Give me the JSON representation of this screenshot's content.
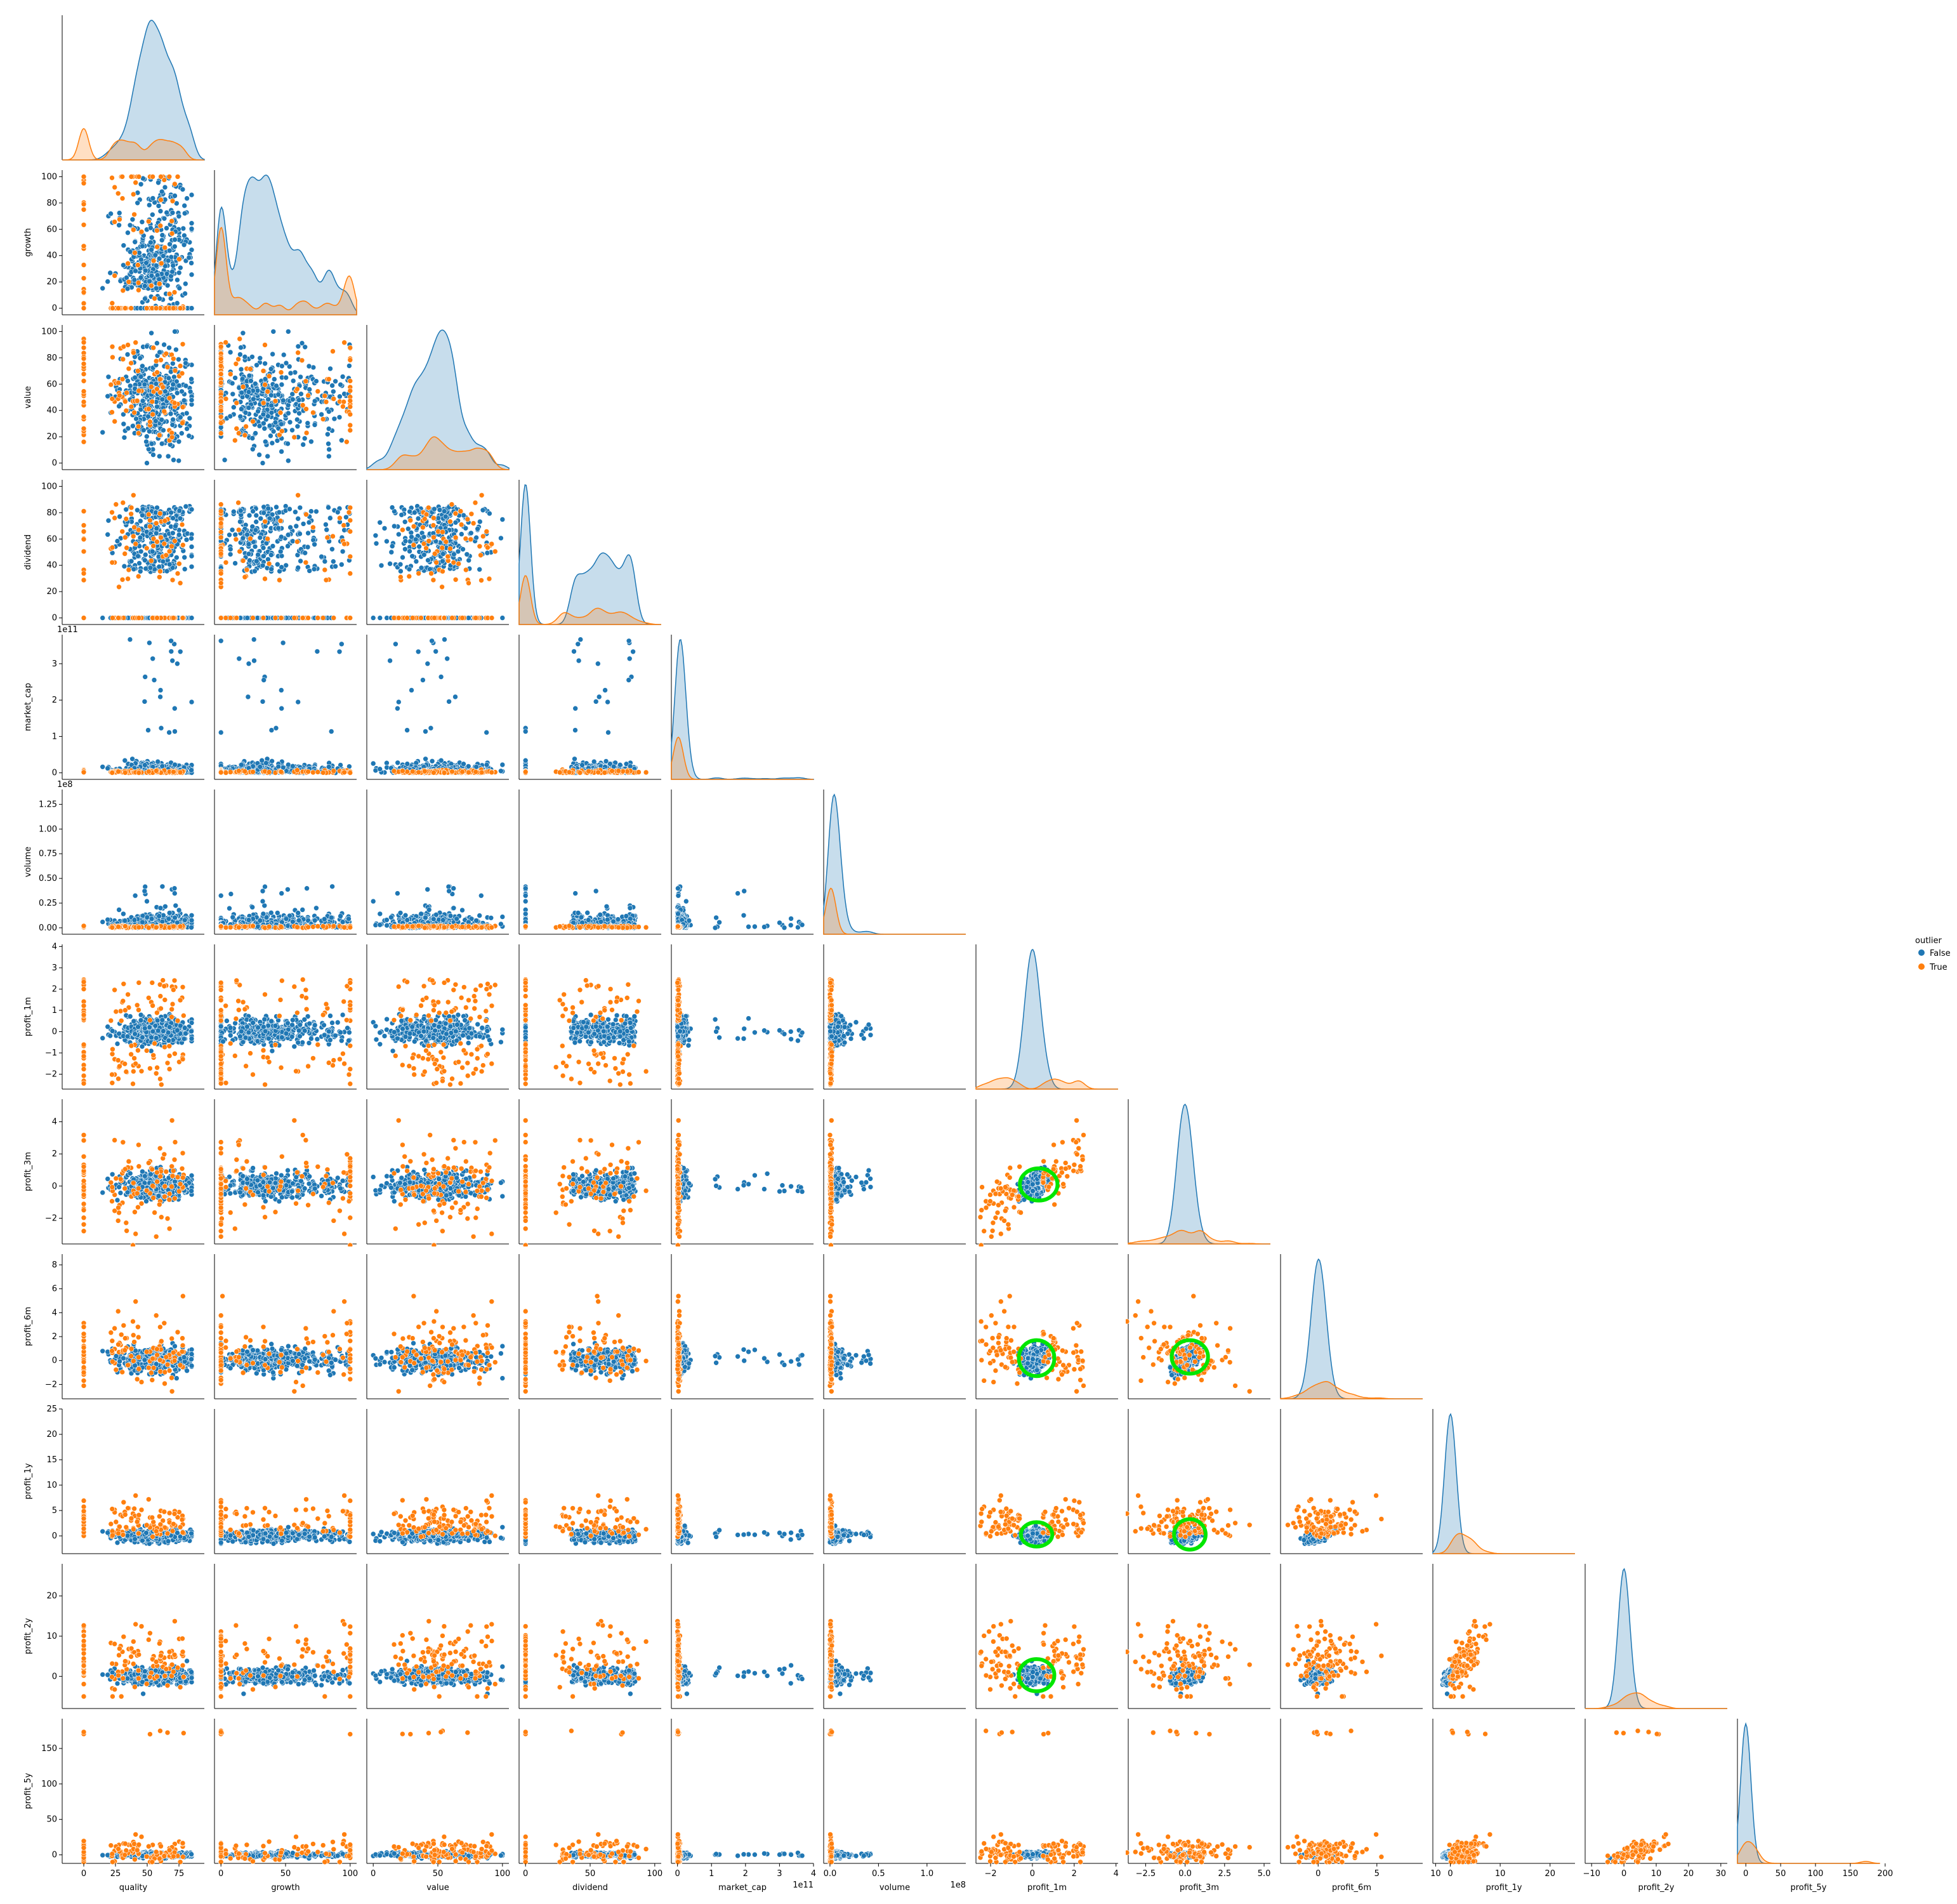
{
  "chart_data": {
    "type": "scatter",
    "kind": "pairplot-corner",
    "variables": [
      "quality",
      "growth",
      "value",
      "dividend",
      "market_cap",
      "volume",
      "profit_1m",
      "profit_3m",
      "profit_6m",
      "profit_1y",
      "profit_2y",
      "profit_5y"
    ],
    "axes": {
      "quality": {
        "range": [
          -17,
          95
        ],
        "ticks": [
          0,
          25,
          50,
          75
        ],
        "tick_labels": [
          "0",
          "25",
          "50",
          "75"
        ]
      },
      "growth": {
        "range": [
          -5,
          105
        ],
        "ticks": [
          0,
          20,
          40,
          60,
          80,
          100
        ],
        "tick_labels": [
          "0",
          "20",
          "40",
          "60",
          "80",
          "100"
        ],
        "x_ticks": [
          0,
          50,
          100
        ],
        "x_tick_labels": [
          "0",
          "50",
          "100"
        ]
      },
      "value": {
        "range": [
          -5,
          105
        ],
        "ticks": [
          0,
          20,
          40,
          60,
          80,
          100
        ],
        "tick_labels": [
          "0",
          "20",
          "40",
          "60",
          "80",
          "100"
        ],
        "x_ticks": [
          0,
          50,
          100
        ],
        "x_tick_labels": [
          "0",
          "50",
          "100"
        ]
      },
      "dividend": {
        "range": [
          -5,
          105
        ],
        "ticks": [
          0,
          20,
          40,
          60,
          80,
          100
        ],
        "tick_labels": [
          "0",
          "20",
          "40",
          "60",
          "80",
          "100"
        ],
        "x_ticks": [
          0,
          50,
          100
        ],
        "x_tick_labels": [
          "0",
          "50",
          "100"
        ]
      },
      "market_cap": {
        "range": [
          -18000000000.0,
          380000000000.0
        ],
        "ticks": [
          0,
          100000000000.0,
          200000000000.0,
          300000000000.0
        ],
        "tick_labels": [
          "0",
          "1",
          "2",
          "3"
        ],
        "x_range": [
          -18000000000.0,
          400000000000.0
        ],
        "x_ticks": [
          0,
          100000000000.0,
          200000000000.0,
          300000000000.0,
          400000000000.0
        ],
        "x_tick_labels": [
          "0",
          "1",
          "2",
          "3",
          "4"
        ],
        "offset": "1e11"
      },
      "volume": {
        "range": [
          -6500000.0,
          140000000.0
        ],
        "ticks": [
          0,
          25000000.0,
          50000000.0,
          75000000.0,
          100000000.0,
          125000000.0
        ],
        "tick_labels": [
          "0.00",
          "0.25",
          "0.50",
          "0.75",
          "1.00",
          "1.25"
        ],
        "x_ticks": [
          0,
          50000000.0,
          100000000.0
        ],
        "x_tick_labels": [
          "0.0",
          "0.5",
          "1.0"
        ],
        "offset": "1e8"
      },
      "profit_1m": {
        "range": [
          -2.7,
          4.1
        ],
        "ticks": [
          -2,
          -1,
          0,
          1,
          2,
          3,
          4
        ],
        "tick_labels": [
          "−2",
          "−1",
          "0",
          "1",
          "2",
          "3",
          "4"
        ],
        "x_ticks": [
          -2,
          0,
          2,
          4
        ],
        "x_tick_labels": [
          "−2",
          "0",
          "2",
          "4"
        ]
      },
      "profit_3m": {
        "range": [
          -3.6,
          5.4
        ],
        "ticks": [
          -2,
          0,
          2,
          4
        ],
        "tick_labels": [
          "−2",
          "0",
          "2",
          "4"
        ],
        "x_ticks": [
          -2.5,
          0,
          2.5,
          5
        ],
        "x_tick_labels": [
          "−2.5",
          "0.0",
          "2.5",
          "5.0"
        ]
      },
      "profit_6m": {
        "range": [
          -3.2,
          8.9
        ],
        "ticks": [
          -2,
          0,
          2,
          4,
          6,
          8
        ],
        "tick_labels": [
          "−2",
          "0",
          "2",
          "4",
          "6",
          "8"
        ],
        "x_ticks": [
          0,
          5,
          10
        ],
        "x_tick_labels": [
          "0",
          "5",
          "10"
        ]
      },
      "profit_1y": {
        "range": [
          -3.5,
          25
        ],
        "ticks": [
          0,
          5,
          10,
          15,
          20,
          25
        ],
        "tick_labels": [
          "0",
          "5",
          "10",
          "15",
          "20",
          "25"
        ],
        "x_ticks": [
          0,
          10,
          20
        ],
        "x_tick_labels": [
          "0",
          "10",
          "20"
        ]
      },
      "profit_2y": {
        "range": [
          -8,
          28
        ],
        "ticks": [
          0,
          10,
          20
        ],
        "tick_labels": [
          "0",
          "10",
          "20"
        ],
        "x_range": [
          -12,
          32
        ],
        "x_ticks": [
          -10,
          0,
          10,
          20,
          30
        ],
        "x_tick_labels": [
          "−10",
          "0",
          "10",
          "20",
          "30"
        ]
      },
      "profit_5y": {
        "range": [
          -12,
          192
        ],
        "ticks": [
          0,
          50,
          100,
          150
        ],
        "tick_labels": [
          "0",
          "50",
          "100",
          "150"
        ],
        "x_ticks": [
          0,
          50,
          100,
          150,
          200
        ],
        "x_tick_labels": [
          "0",
          "50",
          "100",
          "150",
          "200"
        ]
      }
    },
    "series": [
      {
        "name": "False",
        "color": "#1f77b4"
      },
      {
        "name": "True",
        "color": "#ff7f0e"
      }
    ],
    "legend": {
      "title": "outlier",
      "entries": [
        "False",
        "True"
      ],
      "placement": "right"
    },
    "annotations": [
      {
        "type": "ellipse",
        "x": "profit_1m",
        "y": "profit_3m",
        "center": [
          0.3,
          0.1
        ],
        "radius": [
          0.9,
          1.0
        ],
        "color": "#00e600"
      },
      {
        "type": "ellipse",
        "x": "profit_1m",
        "y": "profit_6m",
        "center": [
          0.2,
          0.2
        ],
        "radius": [
          0.85,
          1.5
        ],
        "color": "#00e600"
      },
      {
        "type": "ellipse",
        "x": "profit_3m",
        "y": "profit_6m",
        "center": [
          0.3,
          0.3
        ],
        "radius": [
          1.15,
          1.4
        ],
        "color": "#00e600"
      },
      {
        "type": "ellipse",
        "x": "profit_1m",
        "y": "profit_1y",
        "center": [
          0.2,
          0.3
        ],
        "radius": [
          0.75,
          2.4
        ],
        "color": "#00e600"
      },
      {
        "type": "ellipse",
        "x": "profit_3m",
        "y": "profit_1y",
        "center": [
          0.3,
          0.3
        ],
        "radius": [
          1.0,
          3.0
        ],
        "color": "#00e600"
      },
      {
        "type": "ellipse",
        "x": "profit_1m",
        "y": "profit_2y",
        "center": [
          0.2,
          0.3
        ],
        "radius": [
          0.85,
          4.0
        ],
        "color": "#00e600"
      }
    ],
    "grid": false
  }
}
